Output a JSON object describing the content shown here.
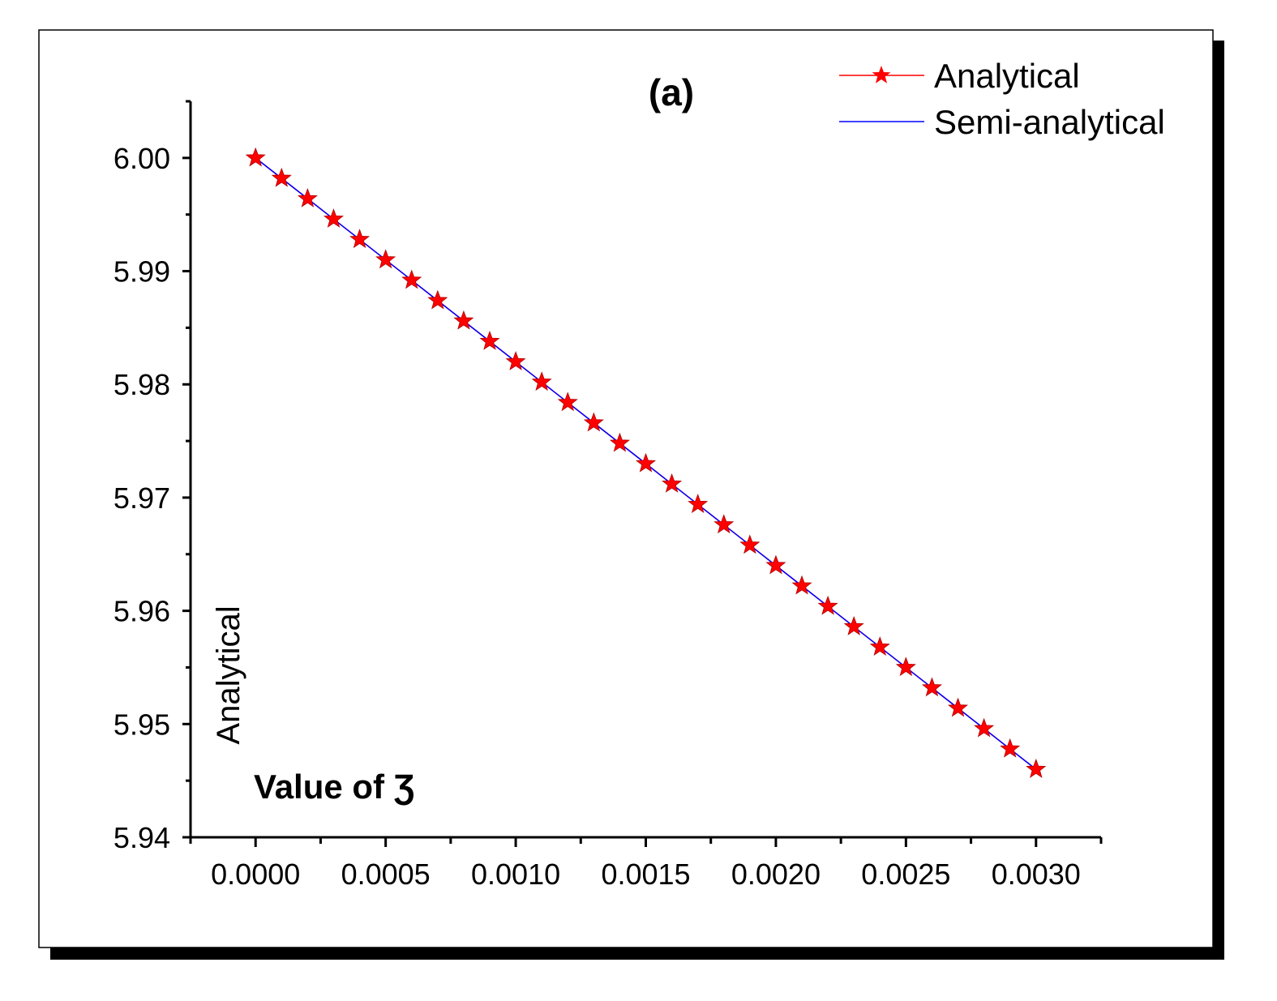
{
  "chart_data": {
    "type": "line",
    "title": "(a)",
    "xlabel": "Value of Ʒ",
    "ylabel": "Analytical",
    "xlim": [
      -0.00025,
      0.00325
    ],
    "ylim": [
      5.94,
      6.005
    ],
    "x_ticks": [
      0.0,
      0.0005,
      0.001,
      0.0015,
      0.002,
      0.0025,
      0.003
    ],
    "x_tick_labels": [
      "0.0000",
      "0.0005",
      "0.0010",
      "0.0015",
      "0.0020",
      "0.0025",
      "0.0030"
    ],
    "y_ticks": [
      5.94,
      5.95,
      5.96,
      5.97,
      5.98,
      5.99,
      6.0
    ],
    "y_tick_labels": [
      "5.94",
      "5.95",
      "5.96",
      "5.97",
      "5.98",
      "5.99",
      "6.00"
    ],
    "legend_position": "top-right",
    "grid": false,
    "x": [
      0.0,
      0.0001,
      0.0002,
      0.0003,
      0.0004,
      0.0005,
      0.0006,
      0.0007,
      0.0008,
      0.0009,
      0.001,
      0.0011,
      0.0012,
      0.0013,
      0.0014,
      0.0015,
      0.0016,
      0.0017,
      0.0018,
      0.0019,
      0.002,
      0.0021,
      0.0022,
      0.0023,
      0.0024,
      0.0025,
      0.0026,
      0.0027,
      0.0028,
      0.0029,
      0.003
    ],
    "series": [
      {
        "name": "Analytical",
        "color": "#ff0000",
        "marker": "star",
        "values": [
          6.0,
          5.9982,
          5.9964,
          5.9946,
          5.9928,
          5.991,
          5.9892,
          5.9874,
          5.9856,
          5.9838,
          5.982,
          5.9802,
          5.9784,
          5.9766,
          5.9748,
          5.973,
          5.9712,
          5.9694,
          5.9676,
          5.9658,
          5.964,
          5.9622,
          5.9604,
          5.9586,
          5.9568,
          5.955,
          5.9532,
          5.9514,
          5.9496,
          5.9478,
          5.946
        ]
      },
      {
        "name": "Semi-analytical",
        "color": "#0000ff",
        "marker": "none",
        "values": [
          6.0,
          5.9982,
          5.9964,
          5.9946,
          5.9928,
          5.991,
          5.9892,
          5.9874,
          5.9856,
          5.9838,
          5.982,
          5.9802,
          5.9784,
          5.9766,
          5.9748,
          5.973,
          5.9712,
          5.9694,
          5.9676,
          5.9658,
          5.964,
          5.9622,
          5.9604,
          5.9586,
          5.9568,
          5.955,
          5.9532,
          5.9514,
          5.9496,
          5.9478,
          5.946
        ]
      }
    ]
  }
}
